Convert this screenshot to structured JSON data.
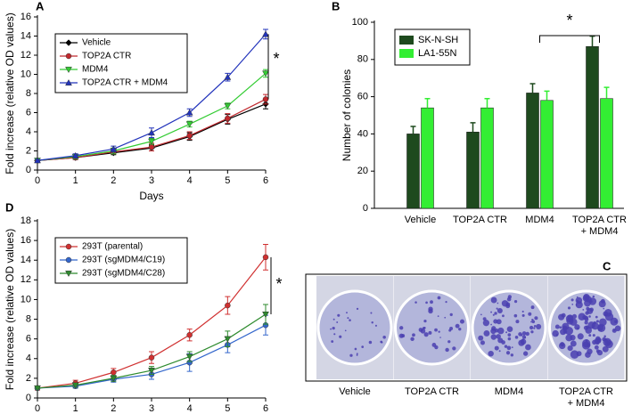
{
  "chart_data": [
    {
      "type": "line",
      "panel_label": "A",
      "xlabel": "Days",
      "ylabel": "Fold increase (relative OD values)",
      "annotation": "*",
      "x": [
        0,
        1,
        2,
        3,
        4,
        5,
        6
      ],
      "xlim": [
        0,
        6
      ],
      "xticks": [
        0,
        1,
        2,
        3,
        4,
        5,
        6
      ],
      "ylim": [
        0,
        16
      ],
      "yticks": [
        0,
        2,
        4,
        6,
        8,
        10,
        12,
        14,
        16
      ],
      "legend": "upper left",
      "series": [
        {
          "name": "Vehicle",
          "color": "#000000",
          "marker": "diamond",
          "values": [
            1,
            1.3,
            1.8,
            2.3,
            3.5,
            5.3,
            6.9
          ],
          "errors": [
            0.1,
            0.2,
            0.2,
            0.3,
            0.4,
            0.5,
            0.5
          ]
        },
        {
          "name": "TOP2A CTR",
          "color": "#c0282d",
          "marker": "circle",
          "values": [
            1,
            1.3,
            1.9,
            2.4,
            3.6,
            5.4,
            7.4
          ],
          "errors": [
            0.1,
            0.2,
            0.2,
            0.4,
            0.4,
            0.5,
            0.5
          ]
        },
        {
          "name": "MDM4",
          "color": "#33cc33",
          "marker": "triangle-down",
          "values": [
            1,
            1.4,
            2.0,
            3.0,
            4.8,
            6.7,
            10.1
          ],
          "errors": [
            0.1,
            0.2,
            0.3,
            0.3,
            0.3,
            0.3,
            0.4
          ]
        },
        {
          "name": "TOP2A CTR + MDM4",
          "color": "#2233bb",
          "marker": "triangle-up",
          "values": [
            1,
            1.5,
            2.2,
            3.9,
            6.0,
            9.7,
            14.2
          ],
          "errors": [
            0.1,
            0.2,
            0.3,
            0.5,
            0.4,
            0.4,
            0.5
          ]
        }
      ]
    },
    {
      "type": "bar",
      "panel_label": "B",
      "ylabel": "Number of colonies",
      "annotation": "*",
      "categories": [
        "Vehicle",
        "TOP2A  CTR",
        "MDM4",
        "TOP2A CTR\n+ MDM4"
      ],
      "ylim": [
        0,
        100
      ],
      "yticks": [
        0,
        20,
        40,
        60,
        80,
        100
      ],
      "legend": "upper left",
      "series": [
        {
          "name": "SK-N-SH",
          "color": "#1e4a1e",
          "values": [
            40,
            41,
            62,
            87
          ],
          "errors": [
            4,
            5,
            5,
            5.5
          ]
        },
        {
          "name": "LA1-55N",
          "color": "#33ee33",
          "values": [
            54,
            54,
            58,
            59
          ],
          "errors": [
            5,
            5,
            5,
            6
          ]
        }
      ]
    },
    {
      "type": "line",
      "panel_label": "D",
      "xlabel": "Days",
      "ylabel": "Fold increase (relative OD values)",
      "annotation": "*",
      "x": [
        0,
        1,
        2,
        3,
        4,
        5,
        6
      ],
      "xlim": [
        0,
        6
      ],
      "xticks": [
        0,
        1,
        2,
        3,
        4,
        5,
        6
      ],
      "ylim": [
        0,
        18
      ],
      "yticks": [
        0,
        2,
        4,
        6,
        8,
        10,
        12,
        14,
        16,
        18
      ],
      "legend": "upper left",
      "series": [
        {
          "name": "293T (parental)",
          "color": "#d03030",
          "marker": "circle",
          "values": [
            1,
            1.5,
            2.6,
            4.1,
            6.4,
            9.4,
            14.3
          ],
          "errors": [
            0.2,
            0.3,
            0.4,
            0.6,
            0.6,
            0.9,
            1.3
          ]
        },
        {
          "name": "293T (sgMDM4/C19)",
          "color": "#3366cc",
          "marker": "circle",
          "values": [
            1,
            1.2,
            1.9,
            2.4,
            3.6,
            5.4,
            7.4
          ],
          "errors": [
            0.1,
            0.2,
            0.3,
            0.5,
            0.9,
            0.8,
            1.0
          ]
        },
        {
          "name": "293T (sgMDM4/C28)",
          "color": "#2e8b2e",
          "marker": "triangle-down",
          "values": [
            1,
            1.3,
            2.0,
            2.8,
            4.2,
            6.0,
            8.5
          ],
          "errors": [
            0.1,
            0.2,
            0.3,
            0.4,
            0.5,
            0.8,
            1.0
          ]
        }
      ]
    }
  ],
  "panel_c": {
    "label": "C",
    "captions": [
      "Vehicle",
      "TOP2A  CTR",
      "MDM4",
      "TOP2A CTR\n+ MDM4"
    ]
  }
}
